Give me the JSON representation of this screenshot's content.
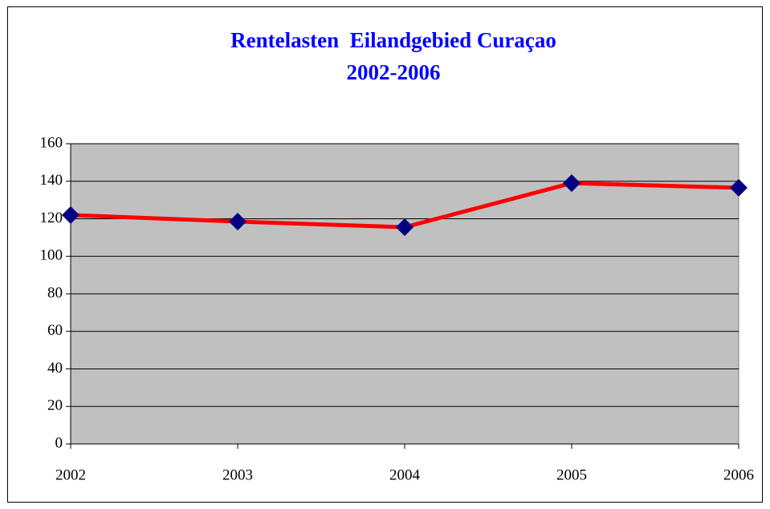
{
  "chart_data": {
    "type": "line",
    "title": "Rentelasten  Eilandgebied Curaçao",
    "subtitle": "2002-2006",
    "categories": [
      "2002",
      "2003",
      "2004",
      "2005",
      "2006"
    ],
    "series": [
      {
        "name": "Rentelasten",
        "color": "#ff0000",
        "marker_color": "#000080",
        "values": [
          122,
          118.5,
          115.5,
          139,
          136.5
        ]
      }
    ],
    "ylim": [
      0,
      160
    ],
    "yticks": [
      0,
      20,
      40,
      60,
      80,
      100,
      120,
      140,
      160
    ],
    "grid": true,
    "legend": false
  }
}
